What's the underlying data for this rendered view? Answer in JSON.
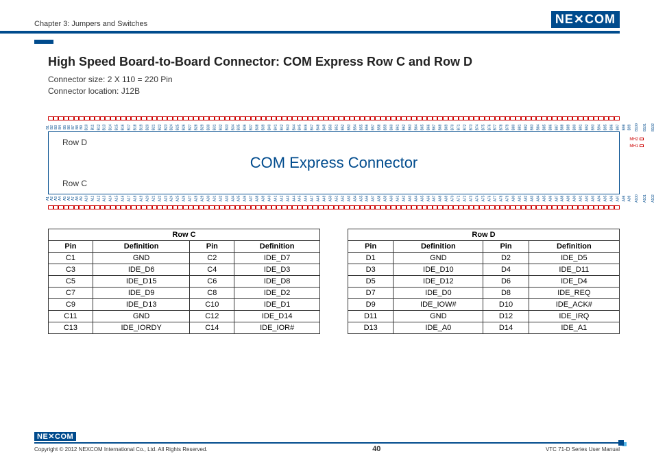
{
  "header": {
    "chapter": "Chapter 3: Jumpers and Switches",
    "logo_text": "NE✕COM"
  },
  "title": "High Speed Board-to-Board Connector: COM Express Row C and Row D",
  "sub1": "Connector size: 2 X 110 = 220 Pin",
  "sub2": "Connector location: J12B",
  "diagram": {
    "rowD": "Row D",
    "rowC": "Row C",
    "title": "COM Express Connector",
    "mh1": "MH1",
    "mh2": "MH2",
    "top_prefix": "B",
    "bottom_prefix": "A",
    "pin_count": 110,
    "pin_color": "#cc0000",
    "label_color": "#004b8d"
  },
  "tableC": {
    "title": "Row C",
    "headers": [
      "Pin",
      "Definition",
      "Pin",
      "Definition"
    ],
    "rows": [
      [
        "C1",
        "GND",
        "C2",
        "IDE_D7"
      ],
      [
        "C3",
        "IDE_D6",
        "C4",
        "IDE_D3"
      ],
      [
        "C5",
        "IDE_D15",
        "C6",
        "IDE_D8"
      ],
      [
        "C7",
        "IDE_D9",
        "C8",
        "IDE_D2"
      ],
      [
        "C9",
        "IDE_D13",
        "C10",
        "IDE_D1"
      ],
      [
        "C11",
        "GND",
        "C12",
        "IDE_D14"
      ],
      [
        "C13",
        "IDE_IORDY",
        "C14",
        "IDE_IOR#"
      ]
    ]
  },
  "tableD": {
    "title": "Row D",
    "headers": [
      "Pin",
      "Definition",
      "Pin",
      "Definition"
    ],
    "rows": [
      [
        "D1",
        "GND",
        "D2",
        "IDE_D5"
      ],
      [
        "D3",
        "IDE_D10",
        "D4",
        "IDE_D11"
      ],
      [
        "D5",
        "IDE_D12",
        "D6",
        "IDE_D4"
      ],
      [
        "D7",
        "IDE_D0",
        "D8",
        "IDE_REQ"
      ],
      [
        "D9",
        "IDE_IOW#",
        "D10",
        "IDE_ACK#"
      ],
      [
        "D11",
        "GND",
        "D12",
        "IDE_IRQ"
      ],
      [
        "D13",
        "IDE_A0",
        "D14",
        "IDE_A1"
      ]
    ]
  },
  "footer": {
    "logo": "NE✕COM",
    "copyright": "Copyright © 2012 NEXCOM International Co., Ltd. All Rights Reserved.",
    "page": "40",
    "manual": "VTC 71-D Series User Manual"
  },
  "colors": {
    "brand": "#004b8d",
    "accent": "#cc0000"
  }
}
